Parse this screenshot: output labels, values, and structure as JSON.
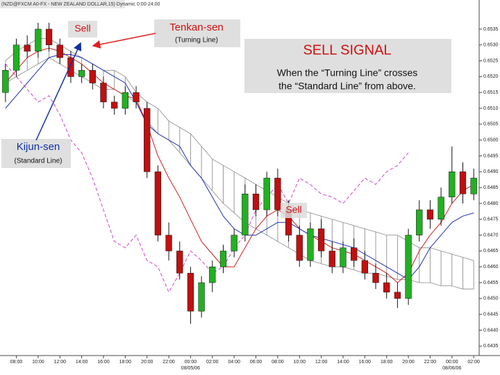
{
  "chart_data": {
    "type": "candlestick",
    "title": "(NZD@FXCM A0-FX - NEW ZEALAND DOLLAR,15) Dynamic 0:00-24:00",
    "categories": [
      null,
      "08:00",
      null,
      "10:00",
      null,
      "12:00",
      null,
      "14:00",
      null,
      "16:00",
      null,
      "18:00",
      null,
      "20:00",
      null,
      "22:00",
      null,
      "00:00",
      null,
      "02:00",
      null,
      "04:00",
      null,
      "06:00",
      null,
      "08:00",
      null,
      "10:00",
      null,
      "12:00",
      null,
      "14:00",
      null,
      "16:00",
      null,
      "18:00",
      null,
      "20:00",
      null,
      "22:00",
      null,
      "00:00",
      null,
      "02:00"
    ],
    "date_categories": [
      null,
      null,
      null,
      null,
      null,
      null,
      null,
      null,
      null,
      null,
      null,
      null,
      null,
      null,
      null,
      null,
      null,
      "08/05/06",
      null,
      null,
      null,
      null,
      null,
      null,
      null,
      null,
      null,
      null,
      null,
      null,
      null,
      null,
      null,
      null,
      null,
      null,
      null,
      null,
      null,
      null,
      null,
      "08/06/06",
      null,
      null
    ],
    "open": [
      0.6515,
      0.6522,
      0.653,
      0.6528,
      0.6535,
      0.653,
      0.6526,
      0.652,
      0.6522,
      0.6518,
      0.6512,
      0.651,
      0.6515,
      0.651,
      0.649,
      0.647,
      0.6465,
      0.6458,
      0.6446,
      0.6455,
      0.646,
      0.6465,
      0.647,
      0.6483,
      0.6478,
      0.6488,
      0.6478,
      0.647,
      0.6462,
      0.6472,
      0.6465,
      0.646,
      0.6466,
      0.6462,
      0.6458,
      0.6455,
      0.6452,
      0.645,
      0.647,
      0.6478,
      0.6475,
      0.6482,
      0.649,
      0.6483
    ],
    "high": [
      0.6524,
      0.6532,
      0.6533,
      0.6537,
      0.6537,
      0.6532,
      0.6528,
      0.6524,
      0.6524,
      0.652,
      0.6514,
      0.6517,
      0.6517,
      0.6512,
      0.6492,
      0.6474,
      0.6468,
      0.646,
      0.6457,
      0.6462,
      0.6467,
      0.6472,
      0.6486,
      0.6486,
      0.649,
      0.6491,
      0.6481,
      0.6473,
      0.6474,
      0.6475,
      0.6468,
      0.6468,
      0.6469,
      0.6465,
      0.6461,
      0.6458,
      0.6455,
      0.6472,
      0.6481,
      0.6481,
      0.6485,
      0.6498,
      0.6493,
      0.6491
    ],
    "low": [
      0.6512,
      0.652,
      0.6526,
      0.6526,
      0.6528,
      0.6524,
      0.6518,
      0.6518,
      0.6516,
      0.651,
      0.6508,
      0.6508,
      0.651,
      0.6488,
      0.6468,
      0.6462,
      0.6456,
      0.6442,
      0.6444,
      0.6452,
      0.6458,
      0.6463,
      0.6468,
      0.6476,
      0.6476,
      0.6476,
      0.6468,
      0.646,
      0.646,
      0.6463,
      0.6458,
      0.6458,
      0.646,
      0.6456,
      0.6453,
      0.645,
      0.6447,
      0.6448,
      0.6468,
      0.6472,
      0.6473,
      0.648,
      0.648,
      0.6481
    ],
    "close": [
      0.6522,
      0.653,
      0.6528,
      0.6535,
      0.653,
      0.6526,
      0.652,
      0.6522,
      0.6518,
      0.6512,
      0.651,
      0.6515,
      0.6512,
      0.649,
      0.647,
      0.6465,
      0.6458,
      0.6446,
      0.6455,
      0.646,
      0.6465,
      0.647,
      0.6483,
      0.6478,
      0.6488,
      0.6478,
      0.647,
      0.6462,
      0.6472,
      0.6465,
      0.646,
      0.6466,
      0.6462,
      0.6458,
      0.6455,
      0.6452,
      0.645,
      0.647,
      0.6478,
      0.6475,
      0.6482,
      0.649,
      0.6483,
      0.6488
    ],
    "up_color": "#22b022",
    "down_color": "#c01010",
    "series": [
      {
        "color": "#cc2020",
        "values": [
          0.6518,
          0.6522,
          0.6526,
          0.6528,
          0.6529,
          0.6528,
          0.6526,
          0.6524,
          0.6521,
          0.6518,
          0.6516,
          0.6514,
          0.6513,
          0.6505,
          0.6495,
          0.6488,
          0.6482,
          0.6475,
          0.6468,
          0.6464,
          0.646,
          0.646,
          0.6466,
          0.6472,
          0.6476,
          0.6478,
          0.6476,
          0.6472,
          0.647,
          0.6468,
          0.6466,
          0.6465,
          0.6464,
          0.6462,
          0.646,
          0.6458,
          0.6455,
          0.6458,
          0.6465,
          0.647,
          0.6474,
          0.648,
          0.6484,
          0.6486
        ]
      },
      {
        "color": "#2030b0",
        "values": [
          0.651,
          0.6514,
          0.6518,
          0.6522,
          0.6526,
          0.6527,
          0.6527,
          0.6526,
          0.6524,
          0.6522,
          0.652,
          0.6518,
          0.6512,
          0.6505,
          0.6502,
          0.65,
          0.6498,
          0.6492,
          0.6488,
          0.6482,
          0.6476,
          0.6472,
          0.647,
          0.647,
          0.6472,
          0.6474,
          0.6474,
          0.6472,
          0.647,
          0.6469,
          0.6468,
          0.6467,
          0.6466,
          0.6464,
          0.6462,
          0.646,
          0.6458,
          0.6456,
          0.646,
          0.6466,
          0.647,
          0.6474,
          0.6476,
          0.6477
        ]
      },
      {
        "color": "#cc44cc",
        "dashed": true,
        "values": [
          0.6524,
          0.652,
          0.6516,
          0.6512,
          0.6514,
          0.6508,
          0.65,
          0.6496,
          0.6488,
          0.6478,
          0.6468,
          0.6466,
          0.647,
          0.6462,
          0.646,
          0.6452,
          0.6458,
          0.6465,
          0.6462,
          0.6458,
          0.646,
          0.6466,
          0.647,
          0.6478,
          0.6482,
          0.6486,
          0.648,
          0.6488,
          0.6486,
          0.6483,
          0.6482,
          0.648,
          0.6484,
          0.6488,
          0.6486,
          0.649,
          0.6492,
          0.6496,
          null,
          null,
          null,
          null,
          null,
          null
        ]
      }
    ],
    "cloud": [
      {
        "color": "#888888",
        "values": [
          0.6525,
          0.6528,
          0.653,
          0.6532,
          0.6532,
          0.653,
          0.6528,
          0.6526,
          0.6524,
          0.6522,
          0.6522,
          0.652,
          0.6515,
          0.6512,
          0.651,
          0.6506,
          0.6504,
          0.6502,
          0.6498,
          0.6494,
          0.6492,
          0.649,
          0.6488,
          0.6486,
          0.6484,
          0.6482,
          0.648,
          0.6478,
          0.6477,
          0.6476,
          0.6475,
          0.6474,
          0.6473,
          0.6472,
          0.6471,
          0.647,
          0.647,
          0.6468,
          0.6466,
          0.6466,
          0.6465,
          0.6464,
          0.6463,
          0.6462
        ]
      },
      {
        "color": "#888888",
        "values": [
          0.6518,
          0.652,
          0.6522,
          0.6524,
          0.6526,
          0.6524,
          0.6522,
          0.652,
          0.6518,
          0.6516,
          0.6516,
          0.6514,
          0.6512,
          0.6506,
          0.6502,
          0.65,
          0.6496,
          0.6492,
          0.6488,
          0.6484,
          0.648,
          0.6477,
          0.6474,
          0.6472,
          0.647,
          0.6468,
          0.6466,
          0.6464,
          0.6462,
          0.6461,
          0.646,
          0.646,
          0.6459,
          0.6458,
          0.6458,
          0.6457,
          0.6456,
          0.6456,
          0.6455,
          0.6455,
          0.6454,
          0.6454,
          0.6453,
          0.6453
        ]
      }
    ],
    "ylim": [
      0.6432,
      0.6542
    ],
    "yticks": [
      0.6435,
      {
        "value": 0.644,
        "label": "0.6440"
      },
      0.6445,
      {
        "value": 0.645,
        "label": "0.6450"
      },
      0.6455,
      {
        "value": 0.646,
        "label": "0.6460"
      },
      0.6465,
      {
        "value": 0.647,
        "label": "0.6470"
      },
      0.6475,
      {
        "value": 0.648,
        "label": "0.6480"
      },
      0.6485,
      {
        "value": 0.649,
        "label": "0.6490"
      },
      0.6495,
      {
        "value": 0.65,
        "label": "0.6500"
      },
      0.6505,
      {
        "value": 0.651,
        "label": "0.6510"
      },
      0.6515,
      {
        "value": 0.652,
        "label": "0.6520"
      },
      0.6525,
      {
        "value": 0.653,
        "label": "0.6530"
      },
      0.6535
    ],
    "annotations": {
      "sell_top": "Sell",
      "tenkan": "Tenkan-sen",
      "tenkan_sub": "(Turning Line)",
      "signal": "SELL SIGNAL",
      "signal_line1": "When the “Turning Line” crosses",
      "signal_line2": "the “Standard Line” from above.",
      "kijun": "Kijun-sen",
      "kijun_sub": "(Standard Line)",
      "sell_mid": "Sell"
    }
  }
}
